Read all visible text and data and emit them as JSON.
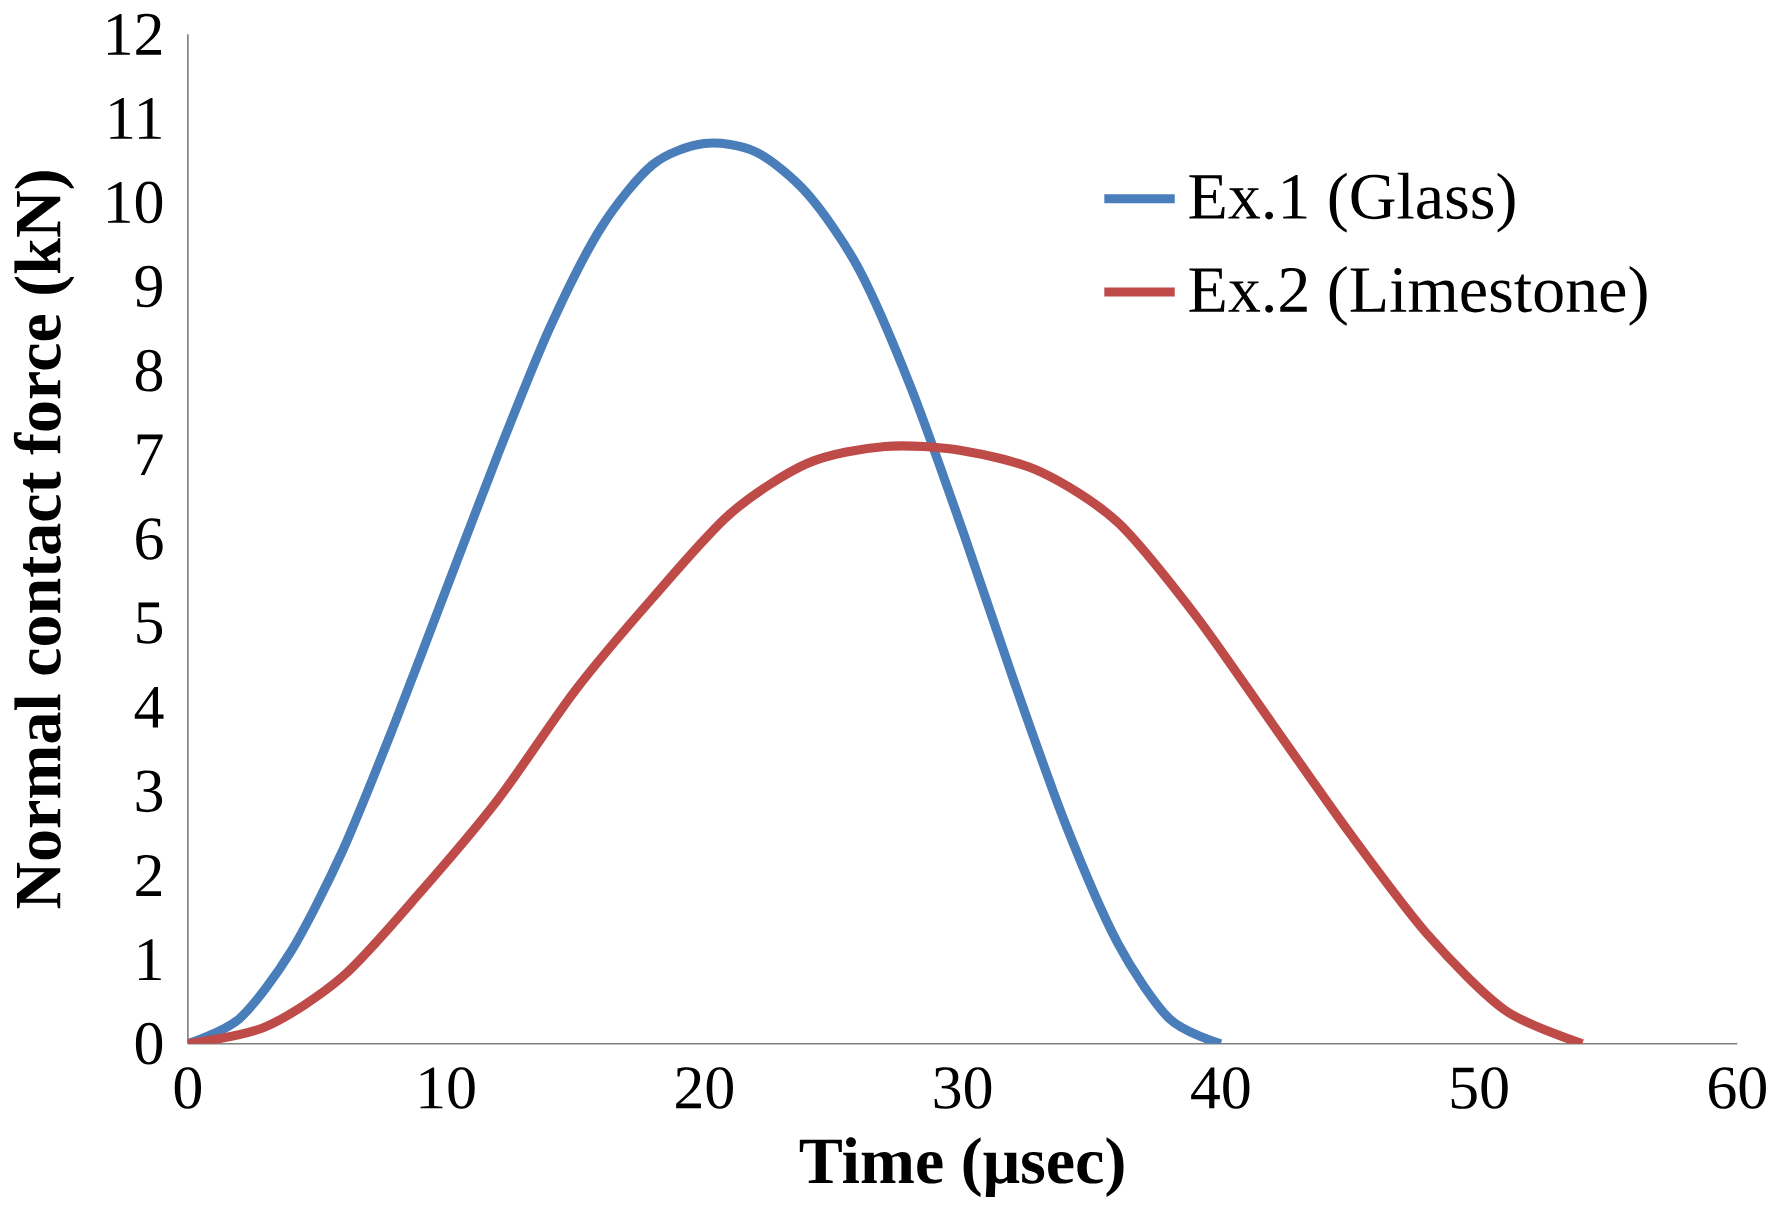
{
  "chart_data": {
    "type": "line",
    "xlabel": "Time (μsec)",
    "ylabel": "Normal contact force (kN)",
    "xlim": [
      0,
      60
    ],
    "ylim": [
      0,
      12
    ],
    "xticks": [
      0,
      10,
      20,
      30,
      40,
      50,
      60
    ],
    "yticks": [
      0,
      1,
      2,
      3,
      4,
      5,
      6,
      7,
      8,
      9,
      10,
      11,
      12
    ],
    "grid": false,
    "legend": "top right",
    "marker": "none",
    "line_style": "solid",
    "series": [
      {
        "name": "Ex.1 (Glass)",
        "color": "#4a7ebb",
        "x": [
          0,
          2,
          4,
          6,
          8,
          10,
          12,
          14,
          16,
          18,
          20,
          22,
          24,
          26,
          28,
          30,
          32,
          34,
          36,
          38,
          40
        ],
        "values": [
          0,
          0.3,
          1.1,
          2.3,
          3.8,
          5.4,
          7.0,
          8.5,
          9.7,
          10.45,
          10.7,
          10.6,
          10.1,
          9.2,
          7.8,
          6.1,
          4.3,
          2.6,
          1.2,
          0.3,
          0
        ]
      },
      {
        "name": "Ex.2 (Limestone)",
        "color": "#be4b48",
        "x": [
          0,
          3,
          6,
          9,
          12,
          15,
          18,
          21,
          24,
          27,
          30,
          33,
          36,
          39,
          42,
          45,
          48,
          51,
          54
        ],
        "values": [
          0,
          0.2,
          0.8,
          1.8,
          2.9,
          4.2,
          5.3,
          6.3,
          6.9,
          7.1,
          7.05,
          6.8,
          6.2,
          5.1,
          3.8,
          2.5,
          1.3,
          0.4,
          0
        ]
      }
    ]
  }
}
